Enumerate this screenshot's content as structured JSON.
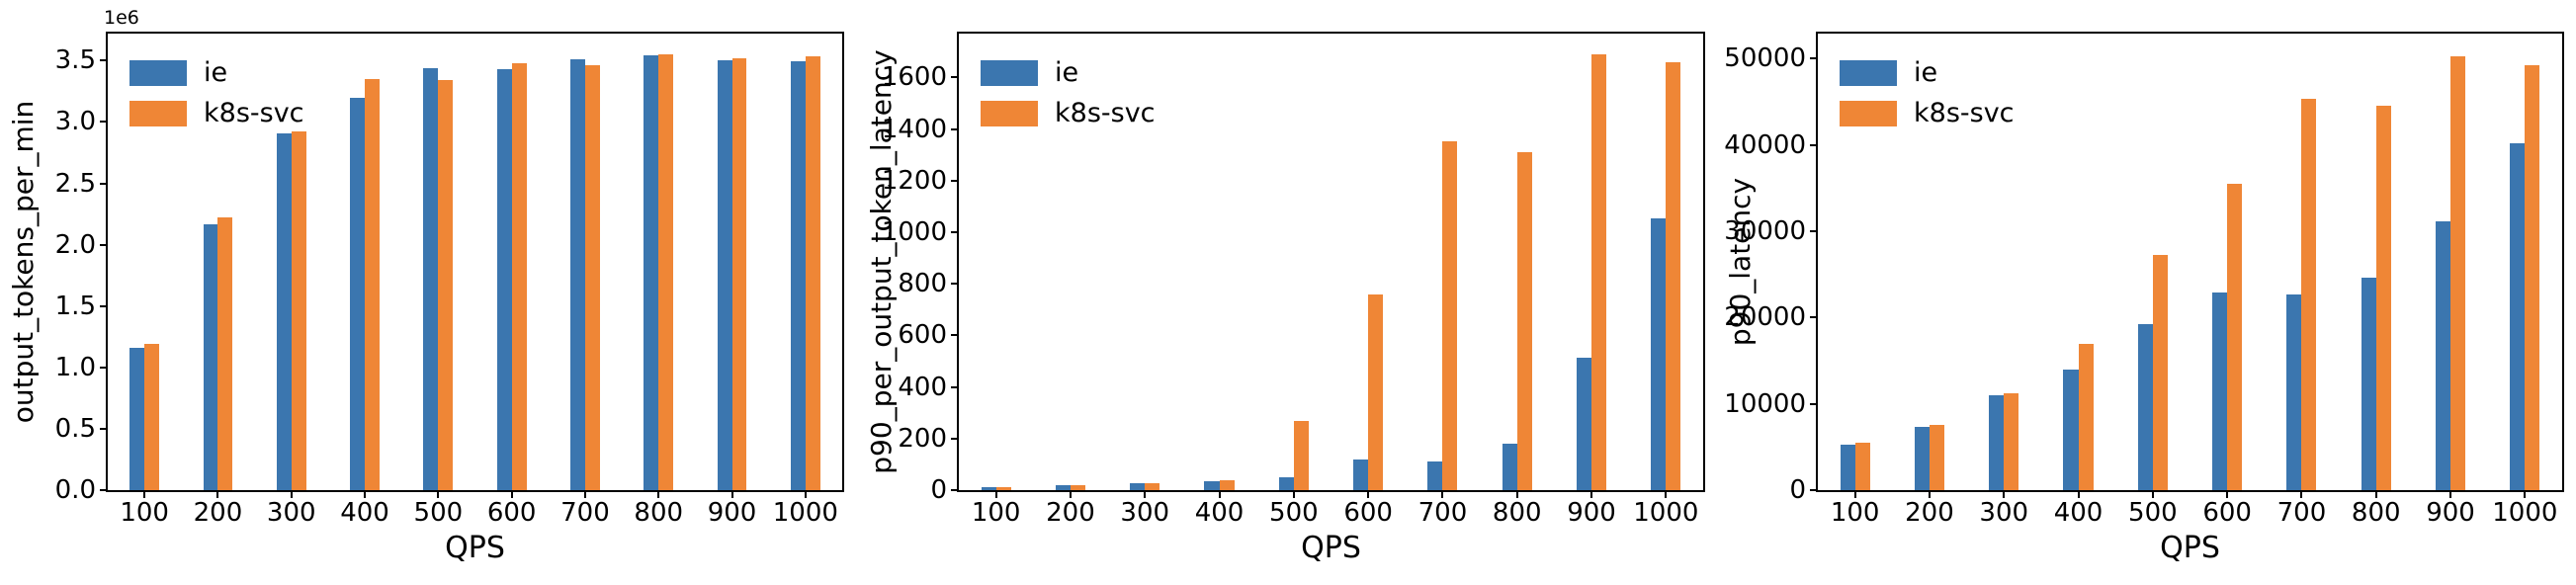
{
  "colors": {
    "series": {
      "ie": "#3b76af",
      "k8s-svc": "#ef8636"
    },
    "axis": "#000000",
    "background": "#ffffff"
  },
  "legend_labels": [
    "ie",
    "k8s-svc"
  ],
  "chart_data": [
    {
      "type": "bar",
      "title": "",
      "ylabel": "output_tokens_per_min",
      "xlabel": "QPS",
      "offset_label": "1e6",
      "legend_position": "upper left",
      "grid": false,
      "ylim": [
        0,
        3720000
      ],
      "yticks": [
        0,
        500000,
        1000000,
        1500000,
        2000000,
        2500000,
        3000000,
        3500000
      ],
      "ytick_labels": [
        "0.0",
        "0.5",
        "1.0",
        "1.5",
        "2.0",
        "2.5",
        "3.0",
        "3.5"
      ],
      "categories": [
        "100",
        "200",
        "300",
        "400",
        "500",
        "600",
        "700",
        "800",
        "900",
        "1000"
      ],
      "series": [
        {
          "name": "ie",
          "values": [
            1160000,
            2170000,
            2910000,
            3200000,
            3440000,
            3430000,
            3510000,
            3545000,
            3505000,
            3495000
          ]
        },
        {
          "name": "k8s-svc",
          "values": [
            1190000,
            2225000,
            2920000,
            3350000,
            3345000,
            3475000,
            3460000,
            3550000,
            3520000,
            3535000
          ]
        }
      ]
    },
    {
      "type": "bar",
      "title": "",
      "ylabel": "p90_per_output_token_latency",
      "xlabel": "QPS",
      "offset_label": "",
      "legend_position": "upper left",
      "grid": false,
      "ylim": [
        0,
        1770
      ],
      "yticks": [
        0,
        200,
        400,
        600,
        800,
        1000,
        1200,
        1400,
        1600
      ],
      "ytick_labels": [
        "0",
        "200",
        "400",
        "600",
        "800",
        "1000",
        "1200",
        "1400",
        "1600"
      ],
      "categories": [
        "100",
        "200",
        "300",
        "400",
        "500",
        "600",
        "700",
        "800",
        "900",
        "1000"
      ],
      "series": [
        {
          "name": "ie",
          "values": [
            10,
            18,
            25,
            35,
            50,
            120,
            110,
            180,
            512,
            1055
          ]
        },
        {
          "name": "k8s-svc",
          "values": [
            10,
            18,
            25,
            40,
            270,
            760,
            1352,
            1310,
            1688,
            1660
          ]
        }
      ]
    },
    {
      "type": "bar",
      "title": "",
      "ylabel": "p90_latency",
      "xlabel": "QPS",
      "offset_label": "",
      "legend_position": "upper left",
      "grid": false,
      "ylim": [
        0,
        52900
      ],
      "yticks": [
        0,
        10000,
        20000,
        30000,
        40000,
        50000
      ],
      "ytick_labels": [
        "0",
        "10000",
        "20000",
        "30000",
        "40000",
        "50000"
      ],
      "categories": [
        "100",
        "200",
        "300",
        "400",
        "500",
        "600",
        "700",
        "800",
        "900",
        "1000"
      ],
      "series": [
        {
          "name": "ie",
          "values": [
            5300,
            7350,
            10950,
            14000,
            19250,
            22900,
            22700,
            24600,
            31200,
            40200
          ]
        },
        {
          "name": "k8s-svc",
          "values": [
            5500,
            7600,
            11200,
            16900,
            27250,
            35500,
            45300,
            44600,
            50250,
            49250
          ]
        }
      ]
    }
  ]
}
